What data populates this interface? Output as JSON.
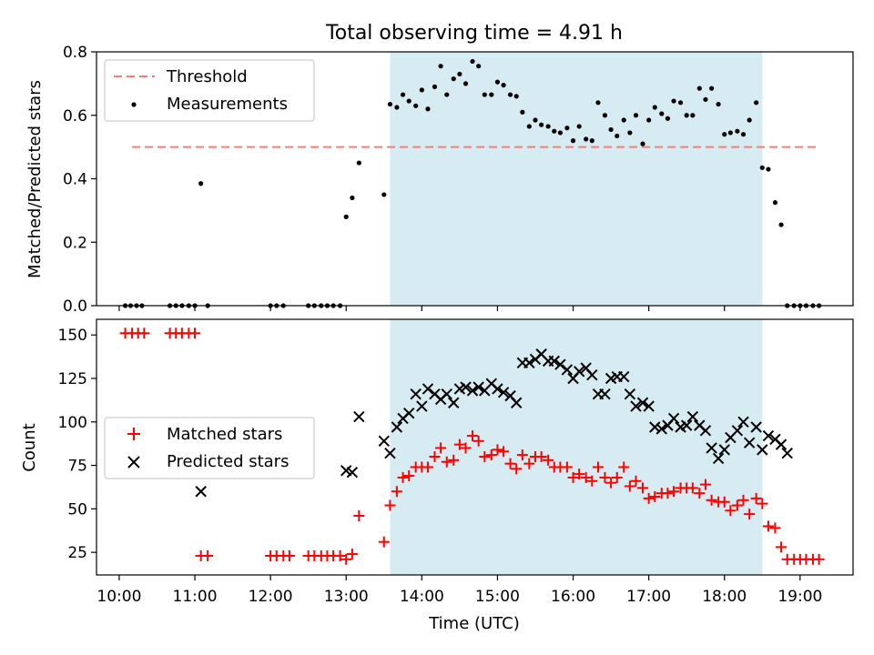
{
  "title": "Total observing time = 4.91 h",
  "colors": {
    "threshold": "#f08080",
    "measurements": "#000000",
    "matched": "#ff0000",
    "predicted": "#000000",
    "observing_window": "#add8e6"
  },
  "chart_data": [
    {
      "type": "scatter",
      "panel": "top",
      "ylabel": "Matched/Predicted stars",
      "xlim": [
        9.7,
        19.7
      ],
      "ylim": [
        0,
        0.8
      ],
      "yticks": [
        0.0,
        0.2,
        0.4,
        0.6,
        0.8
      ],
      "ytick_labels": [
        "0.0",
        "0.2",
        "0.4",
        "0.6",
        "0.8"
      ],
      "observing_window": [
        13.58,
        18.5
      ],
      "threshold": {
        "name": "Threshold",
        "value": 0.5,
        "x_range": [
          10.17,
          19.25
        ]
      },
      "legend": {
        "position": "top-left",
        "entries": [
          "Threshold",
          "Measurements"
        ]
      },
      "series": [
        {
          "name": "Measurements",
          "x": [
            10.08,
            10.15,
            10.23,
            10.3,
            10.67,
            10.75,
            10.83,
            10.92,
            11.0,
            11.08,
            11.17,
            12.0,
            12.08,
            12.17,
            12.5,
            12.58,
            12.67,
            12.75,
            12.83,
            12.92,
            13.0,
            13.08,
            13.17,
            13.5,
            13.58,
            13.67,
            13.75,
            13.83,
            13.92,
            14.0,
            14.08,
            14.17,
            14.25,
            14.33,
            14.42,
            14.5,
            14.58,
            14.67,
            14.75,
            14.83,
            14.92,
            15.0,
            15.08,
            15.17,
            15.25,
            15.33,
            15.42,
            15.5,
            15.58,
            15.67,
            15.75,
            15.83,
            15.92,
            16.0,
            16.08,
            16.17,
            16.25,
            16.33,
            16.42,
            16.5,
            16.58,
            16.67,
            16.75,
            16.83,
            16.92,
            17.0,
            17.08,
            17.17,
            17.25,
            17.33,
            17.42,
            17.5,
            17.58,
            17.67,
            17.75,
            17.83,
            17.92,
            18.0,
            18.08,
            18.17,
            18.25,
            18.33,
            18.42,
            18.5,
            18.58,
            18.67,
            18.75,
            18.83,
            18.92,
            19.0,
            19.08,
            19.17,
            19.25
          ],
          "y": [
            0,
            0,
            0,
            0,
            0,
            0,
            0,
            0,
            0,
            0.385,
            0,
            0,
            0,
            0,
            0,
            0,
            0,
            0,
            0,
            0,
            0.28,
            0.34,
            0.45,
            0.35,
            0.635,
            0.625,
            0.665,
            0.645,
            0.63,
            0.68,
            0.62,
            0.69,
            0.755,
            0.665,
            0.715,
            0.73,
            0.7,
            0.77,
            0.755,
            0.665,
            0.665,
            0.705,
            0.695,
            0.665,
            0.66,
            0.61,
            0.565,
            0.585,
            0.57,
            0.565,
            0.55,
            0.545,
            0.56,
            0.52,
            0.565,
            0.525,
            0.52,
            0.64,
            0.6,
            0.555,
            0.535,
            0.585,
            0.545,
            0.6,
            0.51,
            0.585,
            0.625,
            0.605,
            0.59,
            0.645,
            0.64,
            0.6,
            0.6,
            0.685,
            0.65,
            0.685,
            0.635,
            0.54,
            0.545,
            0.55,
            0.54,
            0.585,
            0.64,
            0.435,
            0.43,
            0.325,
            0.255,
            0,
            0,
            0,
            0,
            0,
            0
          ]
        }
      ]
    },
    {
      "type": "scatter",
      "panel": "bottom",
      "xlabel": "Time (UTC)",
      "ylabel": "Count",
      "xlim": [
        9.7,
        19.7
      ],
      "ylim": [
        12,
        159
      ],
      "yticks": [
        25,
        50,
        75,
        100,
        125,
        150
      ],
      "ytick_labels": [
        "25",
        "50",
        "75",
        "100",
        "125",
        "150"
      ],
      "xticks": [
        10,
        11,
        12,
        13,
        14,
        15,
        16,
        17,
        18,
        19
      ],
      "xtick_labels": [
        "10:00",
        "11:00",
        "12:00",
        "13:00",
        "14:00",
        "15:00",
        "16:00",
        "17:00",
        "18:00",
        "19:00"
      ],
      "observing_window": [
        13.58,
        18.5
      ],
      "legend": {
        "position": "center-left",
        "entries": [
          "Matched stars",
          "Predicted stars"
        ]
      },
      "series": [
        {
          "name": "Matched stars",
          "marker": "plus",
          "x": [
            10.08,
            10.17,
            10.25,
            10.33,
            10.67,
            10.75,
            10.83,
            10.92,
            11.0,
            11.08,
            11.17,
            12.0,
            12.08,
            12.17,
            12.25,
            12.5,
            12.58,
            12.67,
            12.75,
            12.83,
            12.92,
            13.0,
            13.08,
            13.17,
            13.5,
            13.58,
            13.67,
            13.75,
            13.83,
            13.92,
            14.0,
            14.08,
            14.17,
            14.25,
            14.33,
            14.42,
            14.5,
            14.58,
            14.67,
            14.75,
            14.83,
            14.92,
            15.0,
            15.08,
            15.17,
            15.25,
            15.33,
            15.42,
            15.5,
            15.58,
            15.67,
            15.75,
            15.83,
            15.92,
            16.0,
            16.08,
            16.17,
            16.25,
            16.33,
            16.42,
            16.5,
            16.58,
            16.67,
            16.75,
            16.83,
            16.92,
            17.0,
            17.08,
            17.17,
            17.25,
            17.33,
            17.42,
            17.5,
            17.58,
            17.67,
            17.75,
            17.83,
            17.92,
            18.0,
            18.08,
            18.17,
            18.25,
            18.33,
            18.42,
            18.5,
            18.58,
            18.67,
            18.75,
            18.83,
            18.92,
            19.0,
            19.08,
            19.17,
            19.25
          ],
          "y": [
            151,
            151,
            151,
            151,
            151,
            151,
            151,
            151,
            151,
            23,
            23,
            23,
            23,
            23,
            23,
            23,
            23,
            23,
            23,
            23,
            23,
            21,
            24,
            46,
            31,
            52,
            60,
            68,
            69,
            74,
            74,
            74,
            80,
            85,
            77,
            78,
            87,
            85,
            92,
            89,
            80,
            81,
            84,
            83,
            76,
            73,
            81,
            76,
            80,
            80,
            78,
            74,
            74,
            74,
            68,
            70,
            68,
            66,
            74,
            68,
            65,
            68,
            74,
            63,
            66,
            62,
            56,
            57,
            59,
            59,
            60,
            62,
            62,
            62,
            59,
            64,
            55,
            54,
            54,
            49,
            52,
            55,
            47,
            56,
            53,
            40,
            39,
            28,
            21,
            21,
            21,
            21,
            21,
            21
          ]
        },
        {
          "name": "Predicted stars",
          "marker": "x",
          "x": [
            11.08,
            13.0,
            13.08,
            13.17,
            13.5,
            13.58,
            13.67,
            13.75,
            13.83,
            13.92,
            14.0,
            14.08,
            14.17,
            14.25,
            14.33,
            14.42,
            14.5,
            14.58,
            14.67,
            14.75,
            14.83,
            14.92,
            15.0,
            15.08,
            15.17,
            15.25,
            15.33,
            15.42,
            15.5,
            15.58,
            15.67,
            15.75,
            15.83,
            15.92,
            16.0,
            16.08,
            16.17,
            16.25,
            16.33,
            16.42,
            16.5,
            16.58,
            16.67,
            16.75,
            16.83,
            16.92,
            17.0,
            17.08,
            17.17,
            17.25,
            17.33,
            17.42,
            17.5,
            17.58,
            17.67,
            17.75,
            17.83,
            17.92,
            18.0,
            18.08,
            18.17,
            18.25,
            18.33,
            18.42,
            18.5,
            18.58,
            18.67,
            18.75,
            18.83
          ],
          "y": [
            60,
            72,
            71,
            103,
            89,
            82,
            97,
            102,
            105,
            116,
            109,
            119,
            116,
            113,
            116,
            111,
            119,
            120,
            118,
            120,
            118,
            122,
            119,
            117,
            115,
            111,
            134,
            134,
            136,
            139,
            135,
            135,
            133,
            130,
            125,
            129,
            131,
            127,
            116,
            116,
            125,
            126,
            126,
            116,
            109,
            111,
            109,
            97,
            96,
            98,
            102,
            97,
            98,
            103,
            98,
            95,
            85,
            79,
            84,
            91,
            95,
            100,
            88,
            97,
            84,
            92,
            90,
            87,
            82
          ]
        }
      ]
    }
  ]
}
